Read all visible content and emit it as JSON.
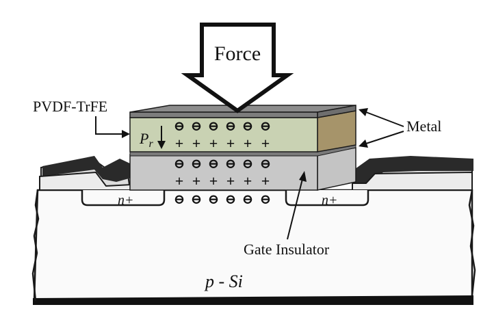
{
  "labels": {
    "force": "Force",
    "pvdf": "PVDF-TrFE",
    "metal": "Metal",
    "pr_symbol": "P",
    "pr_subscript": "r",
    "gate_insulator": "Gate Insulator",
    "n_plus_left": "n+",
    "n_plus_right": "n+",
    "substrate": "p - Si"
  },
  "charges": {
    "plus": "+",
    "minus": "⊖"
  },
  "colors": {
    "metal_top": "#8c8c8c",
    "pvdf_layer": "#c9d2b3",
    "pvdf_side": "#a6946a",
    "insulator_front": "#c8c8c8",
    "substrate": "#f7f7f7",
    "outline": "#1a1a1a"
  }
}
